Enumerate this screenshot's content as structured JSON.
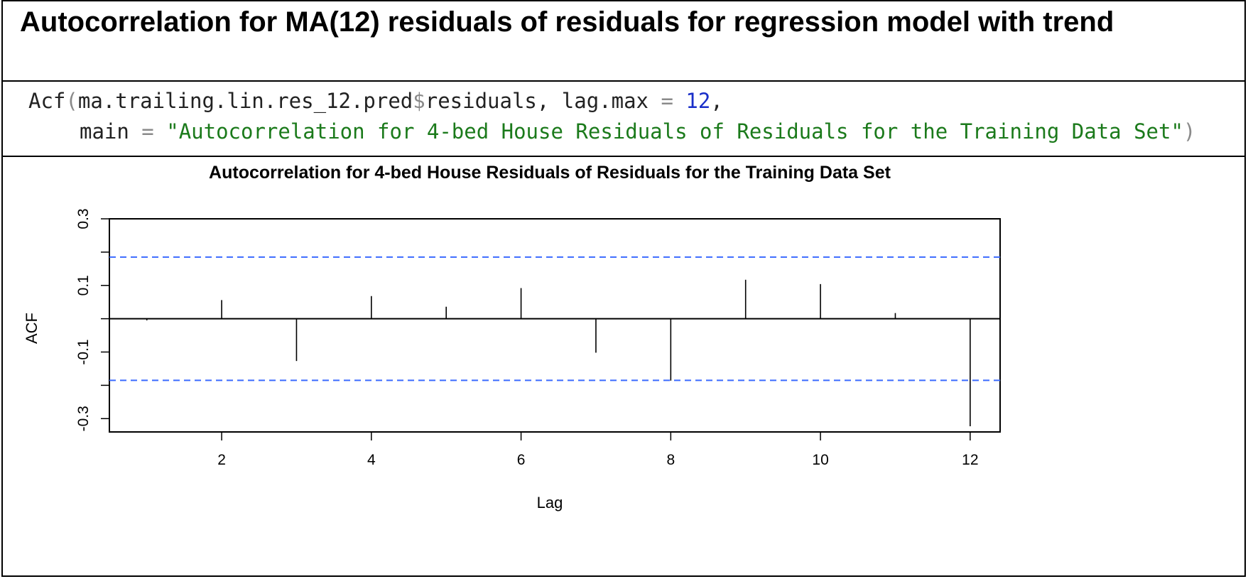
{
  "section": {
    "title": "Autocorrelation for MA(12) residuals of residuals for regression model with trend"
  },
  "code": {
    "fn": "Acf",
    "open_paren": "(",
    "arg1": "ma.trailing.lin.res_12.pred",
    "dollar": "$",
    "arg1b": "residuals, lag.max",
    "eq1": " = ",
    "lag_max": "12",
    "comma": ",",
    "indent_main": "main",
    "eq2": " = ",
    "main_string": "\"Autocorrelation for 4-bed House Residuals of Residuals for the Training Data Set\"",
    "close_paren": ")"
  },
  "chart_data": {
    "type": "bar",
    "title": "Autocorrelation for 4-bed House Residuals of Residuals for the Training Data Set",
    "xlabel": "Lag",
    "ylabel": "ACF",
    "x": [
      1,
      2,
      3,
      4,
      5,
      6,
      7,
      8,
      9,
      10,
      11,
      12
    ],
    "values": [
      -0.005,
      0.056,
      -0.127,
      0.068,
      0.036,
      0.092,
      -0.102,
      -0.186,
      0.117,
      0.104,
      0.017,
      -0.323
    ],
    "confidence_bounds": [
      0.185,
      -0.185
    ],
    "xlim": [
      0.5,
      12.4
    ],
    "ylim": [
      -0.34,
      0.3
    ],
    "xticks": [
      2,
      4,
      6,
      8,
      10,
      12
    ],
    "xtick_labels": [
      "2",
      "4",
      "6",
      "8",
      "10",
      "12"
    ],
    "yticks": [
      0.3,
      0.2,
      0.1,
      0.0,
      -0.1,
      -0.2,
      -0.3
    ],
    "ytick_labels": [
      "0.3",
      "0.1",
      "-0.1",
      "-0.3"
    ],
    "ytick_label_values": [
      0.3,
      0.1,
      -0.1,
      -0.3
    ],
    "colors": {
      "bars": "#000000",
      "bounds": "#3b6bff",
      "zero_line": "#000000"
    }
  }
}
